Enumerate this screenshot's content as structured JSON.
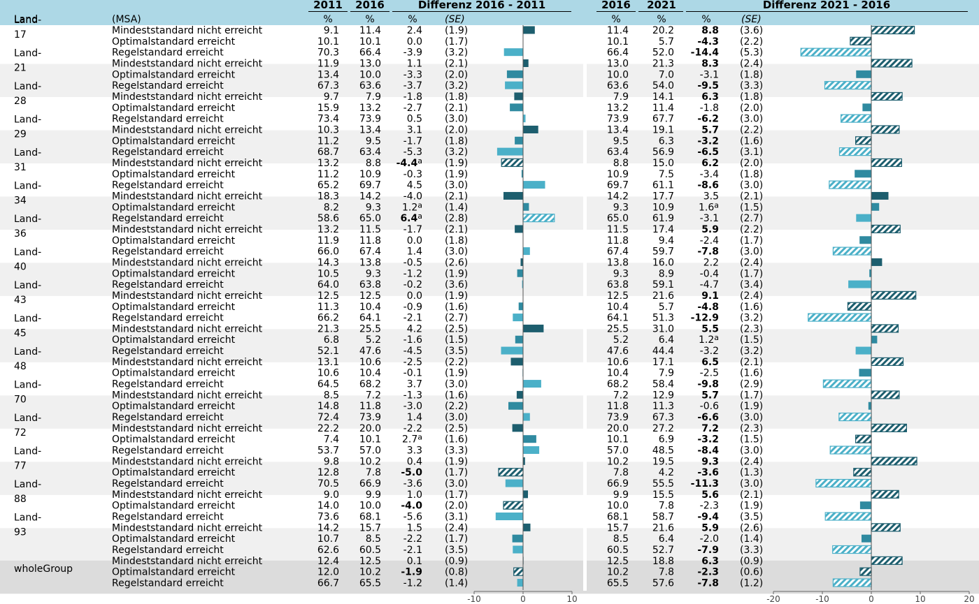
{
  "chart_data": {
    "type": "bar",
    "headers": {
      "col_group": "Land",
      "col_msa": "(MSA)",
      "y2011": "2011",
      "y2016": "2016",
      "diff1_title": "Differenz 2016 - 2011",
      "y2016b": "2016",
      "y2021": "2021",
      "diff2_title": "Differenz 2021 - 2016",
      "pct": "%",
      "se": "(SE)"
    },
    "xaxis1": {
      "min": -10,
      "max": 10,
      "ticks": [
        "-10",
        "0",
        "10"
      ]
    },
    "xaxis2": {
      "min": -20,
      "max": 20,
      "ticks": [
        "-20",
        "-10",
        "0",
        "10",
        "20"
      ]
    },
    "colors": {
      "header_bg": "#add8e6",
      "stripe": "#f0f0f0",
      "whole_stripe": "#dcdcdc",
      "dark_bar": "#1d5e6e",
      "light_bar": "#4bb0c8",
      "axis_line": "#555555"
    },
    "groups": [
      {
        "label": "Land-17",
        "rows": [
          [
            "Mindeststandard nicht erreicht",
            "9.1",
            "11.4",
            "2.4",
            "",
            "(1.9)",
            2.4,
            0,
            "11.4",
            "20.2",
            "8.8",
            "",
            "(3.6)",
            8.8,
            1
          ],
          [
            "Optimalstandard erreicht",
            "10.1",
            "10.1",
            "0.0",
            "",
            "(1.7)",
            0.0,
            0,
            "10.1",
            "5.7",
            "-4.3",
            "",
            "(2.2)",
            -4.3,
            1
          ],
          [
            "Regelstandard erreicht",
            "70.3",
            "66.4",
            "-3.9",
            "",
            "(3.2)",
            -3.9,
            0,
            "66.4",
            "52.0",
            "-14.4",
            "",
            "(5.3)",
            -14.4,
            1
          ]
        ]
      },
      {
        "label": "Land-21",
        "rows": [
          [
            "Mindeststandard nicht erreicht",
            "11.9",
            "13.0",
            "1.1",
            "",
            "(2.1)",
            1.1,
            0,
            "13.0",
            "21.3",
            "8.3",
            "",
            "(2.4)",
            8.3,
            1
          ],
          [
            "Optimalstandard erreicht",
            "13.4",
            "10.0",
            "-3.3",
            "",
            "(2.0)",
            -3.3,
            0,
            "10.0",
            "7.0",
            "-3.1",
            "",
            "(1.8)",
            -3.1,
            0
          ],
          [
            "Regelstandard erreicht",
            "67.3",
            "63.6",
            "-3.7",
            "",
            "(3.2)",
            -3.7,
            0,
            "63.6",
            "54.0",
            "-9.5",
            "",
            "(3.3)",
            -9.5,
            1
          ]
        ]
      },
      {
        "label": "Land-28",
        "rows": [
          [
            "Mindeststandard nicht erreicht",
            "9.7",
            "7.9",
            "-1.8",
            "",
            "(1.8)",
            -1.8,
            0,
            "7.9",
            "14.1",
            "6.3",
            "",
            "(1.8)",
            6.3,
            1
          ],
          [
            "Optimalstandard erreicht",
            "15.9",
            "13.2",
            "-2.7",
            "",
            "(2.1)",
            -2.7,
            0,
            "13.2",
            "11.4",
            "-1.8",
            "",
            "(2.0)",
            -1.8,
            0
          ],
          [
            "Regelstandard erreicht",
            "73.4",
            "73.9",
            "0.5",
            "",
            "(3.0)",
            0.5,
            0,
            "73.9",
            "67.7",
            "-6.2",
            "",
            "(3.0)",
            -6.2,
            1
          ]
        ]
      },
      {
        "label": "Land-29",
        "rows": [
          [
            "Mindeststandard nicht erreicht",
            "10.3",
            "13.4",
            "3.1",
            "",
            "(2.0)",
            3.1,
            0,
            "13.4",
            "19.1",
            "5.7",
            "",
            "(2.2)",
            5.7,
            1
          ],
          [
            "Optimalstandard erreicht",
            "11.2",
            "9.5",
            "-1.7",
            "",
            "(1.8)",
            -1.7,
            0,
            "9.5",
            "6.3",
            "-3.2",
            "",
            "(1.6)",
            -3.2,
            1
          ],
          [
            "Regelstandard erreicht",
            "68.7",
            "63.4",
            "-5.3",
            "",
            "(3.2)",
            -5.3,
            0,
            "63.4",
            "56.9",
            "-6.5",
            "",
            "(3.1)",
            -6.5,
            1
          ]
        ]
      },
      {
        "label": "Land-31",
        "rows": [
          [
            "Mindeststandard nicht erreicht",
            "13.2",
            "8.8",
            "-4.4",
            "a",
            "(1.9)",
            -4.4,
            1,
            "8.8",
            "15.0",
            "6.2",
            "",
            "(2.0)",
            6.2,
            1
          ],
          [
            "Optimalstandard erreicht",
            "11.2",
            "10.9",
            "-0.3",
            "",
            "(1.9)",
            -0.3,
            0,
            "10.9",
            "7.5",
            "-3.4",
            "",
            "(1.8)",
            -3.4,
            0
          ],
          [
            "Regelstandard erreicht",
            "65.2",
            "69.7",
            "4.5",
            "",
            "(3.0)",
            4.5,
            0,
            "69.7",
            "61.1",
            "-8.6",
            "",
            "(3.0)",
            -8.6,
            1
          ]
        ]
      },
      {
        "label": "Land-34",
        "rows": [
          [
            "Mindeststandard nicht erreicht",
            "18.3",
            "14.2",
            "-4.0",
            "",
            "(2.1)",
            -4.0,
            0,
            "14.2",
            "17.7",
            "3.5",
            "",
            "(2.1)",
            3.5,
            0
          ],
          [
            "Optimalstandard erreicht",
            "8.2",
            "9.3",
            "1.2",
            "a",
            "(1.4)",
            1.2,
            0,
            "9.3",
            "10.9",
            "1.6",
            "a",
            "(1.5)",
            1.6,
            0
          ],
          [
            "Regelstandard erreicht",
            "58.6",
            "65.0",
            "6.4",
            "a",
            "(2.8)",
            6.4,
            1,
            "65.0",
            "61.9",
            "-3.1",
            "",
            "(2.7)",
            -3.1,
            0
          ]
        ]
      },
      {
        "label": "Land-36",
        "rows": [
          [
            "Mindeststandard nicht erreicht",
            "13.2",
            "11.5",
            "-1.7",
            "",
            "(2.1)",
            -1.7,
            0,
            "11.5",
            "17.4",
            "5.9",
            "",
            "(2.2)",
            5.9,
            1
          ],
          [
            "Optimalstandard erreicht",
            "11.9",
            "11.8",
            "0.0",
            "",
            "(1.8)",
            0.0,
            0,
            "11.8",
            "9.4",
            "-2.4",
            "",
            "(1.7)",
            -2.4,
            0
          ],
          [
            "Regelstandard erreicht",
            "66.0",
            "67.4",
            "1.4",
            "",
            "(3.0)",
            1.4,
            0,
            "67.4",
            "59.7",
            "-7.8",
            "",
            "(3.0)",
            -7.8,
            1
          ]
        ]
      },
      {
        "label": "Land-40",
        "rows": [
          [
            "Mindeststandard nicht erreicht",
            "14.3",
            "13.8",
            "-0.5",
            "",
            "(2.6)",
            -0.5,
            0,
            "13.8",
            "16.0",
            "2.2",
            "",
            "(2.4)",
            2.2,
            0
          ],
          [
            "Optimalstandard erreicht",
            "10.5",
            "9.3",
            "-1.2",
            "",
            "(1.9)",
            -1.2,
            0,
            "9.3",
            "8.9",
            "-0.4",
            "",
            "(1.7)",
            -0.4,
            0
          ],
          [
            "Regelstandard erreicht",
            "64.0",
            "63.8",
            "-0.2",
            "",
            "(3.6)",
            -0.2,
            0,
            "63.8",
            "59.1",
            "-4.7",
            "",
            "(3.4)",
            -4.7,
            0
          ]
        ]
      },
      {
        "label": "Land-43",
        "rows": [
          [
            "Mindeststandard nicht erreicht",
            "12.5",
            "12.5",
            "0.0",
            "",
            "(1.9)",
            0.0,
            0,
            "12.5",
            "21.6",
            "9.1",
            "",
            "(2.4)",
            9.1,
            1
          ],
          [
            "Optimalstandard erreicht",
            "11.3",
            "10.4",
            "-0.9",
            "",
            "(1.6)",
            -0.9,
            0,
            "10.4",
            "5.7",
            "-4.8",
            "",
            "(1.6)",
            -4.8,
            1
          ],
          [
            "Regelstandard erreicht",
            "66.2",
            "64.1",
            "-2.1",
            "",
            "(2.7)",
            -2.1,
            0,
            "64.1",
            "51.3",
            "-12.9",
            "",
            "(3.2)",
            -12.9,
            1
          ]
        ]
      },
      {
        "label": "Land-45",
        "rows": [
          [
            "Mindeststandard nicht erreicht",
            "21.3",
            "25.5",
            "4.2",
            "",
            "(2.5)",
            4.2,
            0,
            "25.5",
            "31.0",
            "5.5",
            "",
            "(2.3)",
            5.5,
            1
          ],
          [
            "Optimalstandard erreicht",
            "6.8",
            "5.2",
            "-1.6",
            "",
            "(1.5)",
            -1.6,
            0,
            "5.2",
            "6.4",
            "1.2",
            "a",
            "(1.5)",
            1.2,
            0
          ],
          [
            "Regelstandard erreicht",
            "52.1",
            "47.6",
            "-4.5",
            "",
            "(3.5)",
            -4.5,
            0,
            "47.6",
            "44.4",
            "-3.2",
            "",
            "(3.2)",
            -3.2,
            0
          ]
        ]
      },
      {
        "label": "Land-48",
        "rows": [
          [
            "Mindeststandard nicht erreicht",
            "13.1",
            "10.6",
            "-2.5",
            "",
            "(2.2)",
            -2.5,
            0,
            "10.6",
            "17.1",
            "6.5",
            "",
            "(2.1)",
            6.5,
            1
          ],
          [
            "Optimalstandard erreicht",
            "10.6",
            "10.4",
            "-0.1",
            "",
            "(1.9)",
            -0.1,
            0,
            "10.4",
            "7.9",
            "-2.5",
            "",
            "(1.6)",
            -2.5,
            0
          ],
          [
            "Regelstandard erreicht",
            "64.5",
            "68.2",
            "3.7",
            "",
            "(3.0)",
            3.7,
            0,
            "68.2",
            "58.4",
            "-9.8",
            "",
            "(2.9)",
            -9.8,
            1
          ]
        ]
      },
      {
        "label": "Land-70",
        "rows": [
          [
            "Mindeststandard nicht erreicht",
            "8.5",
            "7.2",
            "-1.3",
            "",
            "(1.6)",
            -1.3,
            0,
            "7.2",
            "12.9",
            "5.7",
            "",
            "(1.7)",
            5.7,
            1
          ],
          [
            "Optimalstandard erreicht",
            "14.8",
            "11.8",
            "-3.0",
            "",
            "(2.2)",
            -3.0,
            0,
            "11.8",
            "11.3",
            "-0.6",
            "",
            "(1.9)",
            -0.6,
            0
          ],
          [
            "Regelstandard erreicht",
            "72.4",
            "73.9",
            "1.4",
            "",
            "(3.0)",
            1.4,
            0,
            "73.9",
            "67.3",
            "-6.6",
            "",
            "(3.0)",
            -6.6,
            1
          ]
        ]
      },
      {
        "label": "Land-72",
        "rows": [
          [
            "Mindeststandard nicht erreicht",
            "22.2",
            "20.0",
            "-2.2",
            "",
            "(2.5)",
            -2.2,
            0,
            "20.0",
            "27.2",
            "7.2",
            "",
            "(2.3)",
            7.2,
            1
          ],
          [
            "Optimalstandard erreicht",
            "7.4",
            "10.1",
            "2.7",
            "a",
            "(1.6)",
            2.7,
            0,
            "10.1",
            "6.9",
            "-3.2",
            "",
            "(1.5)",
            -3.2,
            1
          ],
          [
            "Regelstandard erreicht",
            "53.7",
            "57.0",
            "3.3",
            "",
            "(3.3)",
            3.3,
            0,
            "57.0",
            "48.5",
            "-8.4",
            "",
            "(3.0)",
            -8.4,
            1
          ]
        ]
      },
      {
        "label": "Land-77",
        "rows": [
          [
            "Mindeststandard nicht erreicht",
            "9.8",
            "10.2",
            "0.4",
            "",
            "(1.9)",
            0.4,
            0,
            "10.2",
            "19.5",
            "9.3",
            "",
            "(2.4)",
            9.3,
            1
          ],
          [
            "Optimalstandard erreicht",
            "12.8",
            "7.8",
            "-5.0",
            "",
            "(1.7)",
            -5.0,
            1,
            "7.8",
            "4.2",
            "-3.6",
            "",
            "(1.3)",
            -3.6,
            1
          ],
          [
            "Regelstandard erreicht",
            "70.5",
            "66.9",
            "-3.6",
            "",
            "(3.0)",
            -3.6,
            0,
            "66.9",
            "55.5",
            "-11.3",
            "",
            "(3.0)",
            -11.3,
            1
          ]
        ]
      },
      {
        "label": "Land-88",
        "rows": [
          [
            "Mindeststandard nicht erreicht",
            "9.0",
            "9.9",
            "1.0",
            "",
            "(1.7)",
            1.0,
            0,
            "9.9",
            "15.5",
            "5.6",
            "",
            "(2.1)",
            5.6,
            1
          ],
          [
            "Optimalstandard erreicht",
            "14.0",
            "10.0",
            "-4.0",
            "",
            "(2.0)",
            -4.0,
            1,
            "10.0",
            "7.8",
            "-2.3",
            "",
            "(1.9)",
            -2.3,
            0
          ],
          [
            "Regelstandard erreicht",
            "73.6",
            "68.1",
            "-5.6",
            "",
            "(3.1)",
            -5.6,
            0,
            "68.1",
            "58.7",
            "-9.4",
            "",
            "(3.5)",
            -9.4,
            1
          ]
        ]
      },
      {
        "label": "Land-93",
        "rows": [
          [
            "Mindeststandard nicht erreicht",
            "14.2",
            "15.7",
            "1.5",
            "",
            "(2.4)",
            1.5,
            0,
            "15.7",
            "21.6",
            "5.9",
            "",
            "(2.6)",
            5.9,
            1
          ],
          [
            "Optimalstandard erreicht",
            "10.7",
            "8.5",
            "-2.2",
            "",
            "(1.7)",
            -2.2,
            0,
            "8.5",
            "6.4",
            "-2.0",
            "",
            "(1.4)",
            -2.0,
            0
          ],
          [
            "Regelstandard erreicht",
            "62.6",
            "60.5",
            "-2.1",
            "",
            "(3.5)",
            -2.1,
            0,
            "60.5",
            "52.7",
            "-7.9",
            "",
            "(3.3)",
            -7.9,
            1
          ]
        ]
      },
      {
        "label": "wholeGroup",
        "whole": true,
        "rows": [
          [
            "Mindeststandard nicht erreicht",
            "12.4",
            "12.5",
            "0.1",
            "",
            "(0.9)",
            0.1,
            0,
            "12.5",
            "18.8",
            "6.3",
            "",
            "(0.9)",
            6.3,
            1
          ],
          [
            "Optimalstandard erreicht",
            "12.0",
            "10.2",
            "-1.9",
            "",
            "(0.8)",
            -1.9,
            1,
            "10.2",
            "7.8",
            "-2.3",
            "",
            "(0.6)",
            -2.3,
            1
          ],
          [
            "Regelstandard erreicht",
            "66.7",
            "65.5",
            "-1.2",
            "",
            "(1.4)",
            -1.2,
            0,
            "65.5",
            "57.6",
            "-7.8",
            "",
            "(1.2)",
            -7.8,
            1
          ]
        ]
      }
    ]
  }
}
